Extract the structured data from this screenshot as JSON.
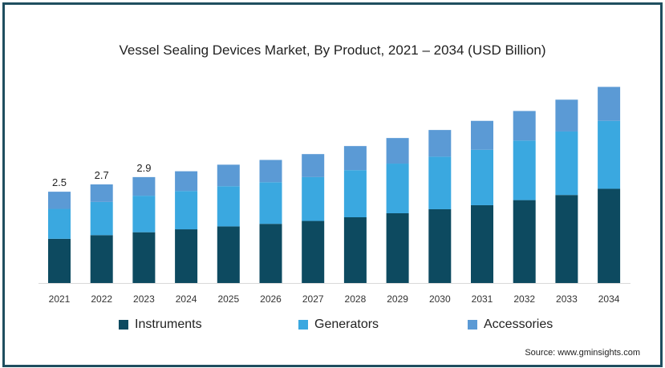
{
  "chart_data": {
    "type": "bar",
    "stacked": true,
    "title": "Vessel Sealing Devices Market, By Product, 2021 – 2034 (USD Billion)",
    "categories": [
      "2021",
      "2022",
      "2023",
      "2024",
      "2025",
      "2026",
      "2027",
      "2028",
      "2029",
      "2030",
      "2031",
      "2032",
      "2033",
      "2034"
    ],
    "series": [
      {
        "name": "Instruments",
        "color": "#0d4a60",
        "values": [
          1.21,
          1.31,
          1.39,
          1.47,
          1.55,
          1.62,
          1.7,
          1.8,
          1.91,
          2.02,
          2.13,
          2.27,
          2.41,
          2.58
        ]
      },
      {
        "name": "Generators",
        "color": "#3aa8e0",
        "values": [
          0.82,
          0.91,
          1.0,
          1.05,
          1.1,
          1.14,
          1.2,
          1.29,
          1.36,
          1.44,
          1.52,
          1.63,
          1.74,
          1.86
        ]
      },
      {
        "name": "Accessories",
        "color": "#5b9ad5",
        "values": [
          0.47,
          0.48,
          0.51,
          0.54,
          0.59,
          0.61,
          0.63,
          0.66,
          0.7,
          0.73,
          0.79,
          0.81,
          0.87,
          0.93
        ]
      }
    ],
    "data_labels": [
      "2.5",
      "2.7",
      "2.9"
    ],
    "ylim": [
      0,
      5.4
    ],
    "legend_position": "bottom",
    "grid": false
  },
  "source": "Source: www.gminsights.com"
}
